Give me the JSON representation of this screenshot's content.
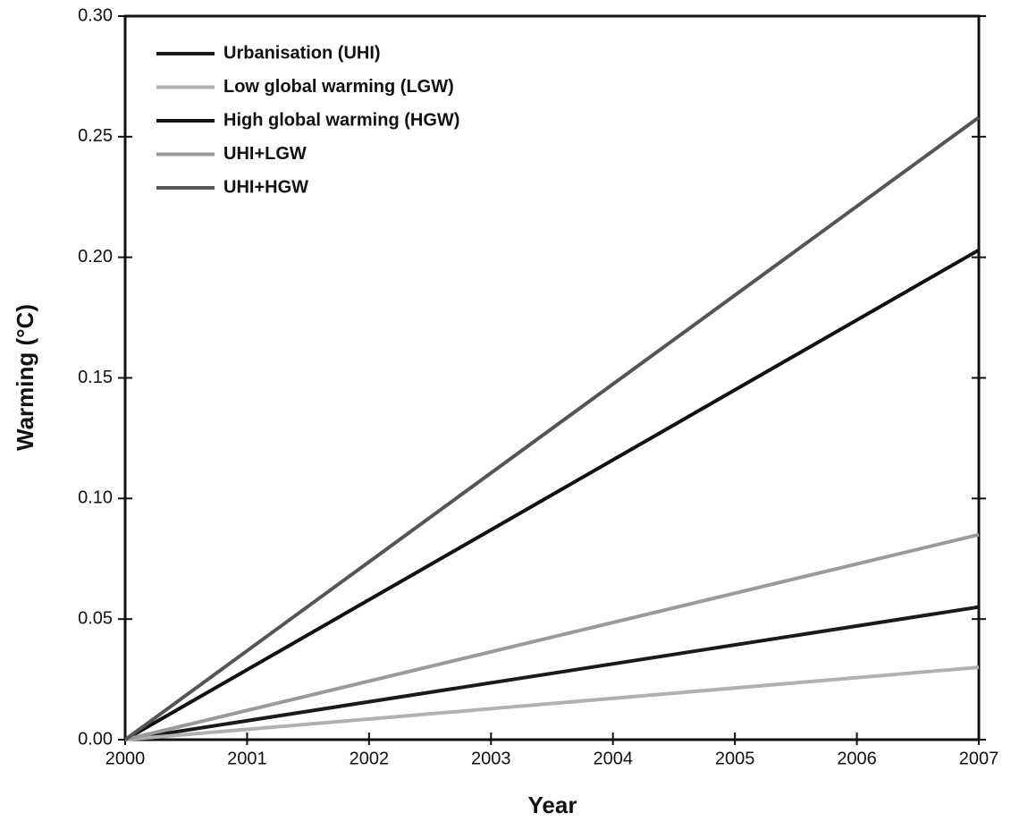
{
  "chart_data": {
    "type": "line",
    "x_label": "Year",
    "y_label": "Warming (°C)",
    "x": [
      2000,
      2007
    ],
    "series": [
      {
        "name": "Urbanisation (UHI)",
        "color": "#1a1a1a",
        "values": [
          0,
          0.055
        ]
      },
      {
        "name": "Low global warming (LGW)",
        "color": "#b0b0b0",
        "values": [
          0,
          0.03
        ]
      },
      {
        "name": "High global warming (HGW)",
        "color": "#111111",
        "values": [
          0,
          0.203
        ]
      },
      {
        "name": "UHI+LGW",
        "color": "#9a9a9a",
        "values": [
          0,
          0.085
        ]
      },
      {
        "name": "UHI+HGW",
        "color": "#555555",
        "values": [
          0,
          0.258
        ]
      }
    ],
    "xlim": [
      2000,
      2007
    ],
    "xticks": [
      2000,
      2001,
      2002,
      2003,
      2004,
      2005,
      2006,
      2007
    ],
    "ylim": [
      0,
      0.3
    ],
    "yticks": [
      {
        "value": 0,
        "label": "0.00"
      },
      {
        "value": 0.05,
        "label": "0.05"
      },
      {
        "value": 0.1,
        "label": "0.10"
      },
      {
        "value": 0.15,
        "label": "0.15"
      },
      {
        "value": 0.2,
        "label": "0.20"
      },
      {
        "value": 0.25,
        "label": "0.25"
      },
      {
        "value": 0.3,
        "label": "0.30"
      }
    ],
    "legend": "upper-left"
  }
}
